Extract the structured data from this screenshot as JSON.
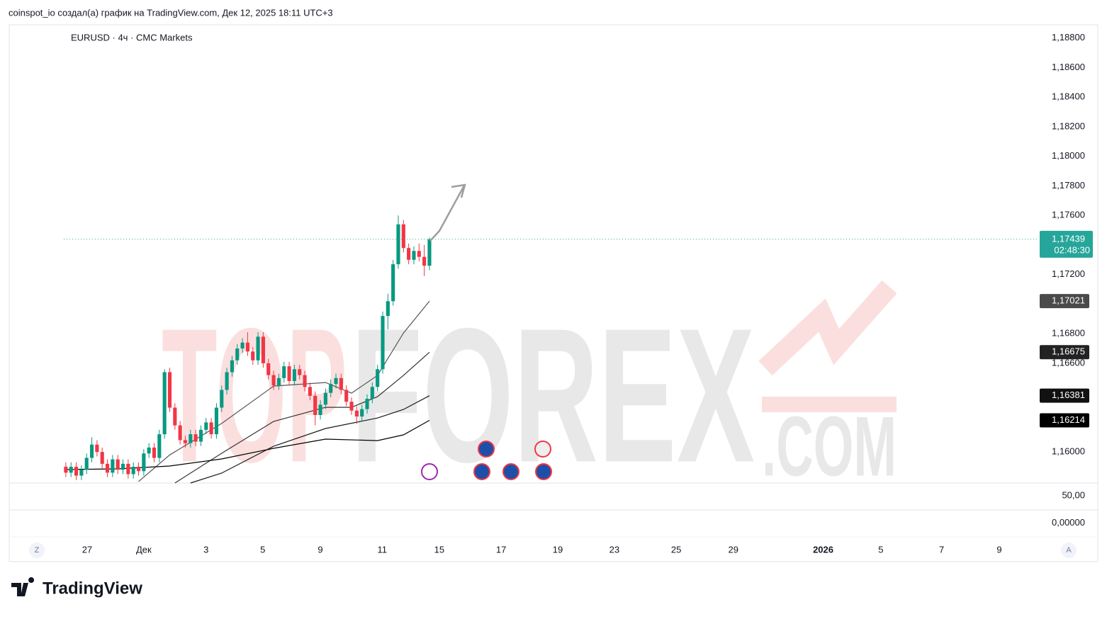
{
  "header": {
    "author_line": "coinspot_io создал(а) график на TradingView.com, Дек 12, 2025 18:11 UTC+3",
    "brand": "TradingView"
  },
  "ui": {
    "left_button": "Z",
    "right_button": "A"
  },
  "watermark": {
    "part1": "TOP",
    "part2": "FOREX",
    "domain": ".COM"
  },
  "chart_data": {
    "type": "candlestick",
    "title": "EURUSD · 4ч · CMC Markets",
    "up_color": "#089981",
    "down_color": "#f23645",
    "xlim": [
      -10.9,
      187.2
    ],
    "xticks": [
      {
        "value": 4.1,
        "label": "27"
      },
      {
        "value": 15,
        "label": "Дек"
      },
      {
        "value": 27,
        "label": "3"
      },
      {
        "value": 37.9,
        "label": "5"
      },
      {
        "value": 49,
        "label": "9"
      },
      {
        "value": 60.9,
        "label": "11"
      },
      {
        "value": 71.9,
        "label": "15"
      },
      {
        "value": 83.8,
        "label": "17"
      },
      {
        "value": 94.7,
        "label": "19"
      },
      {
        "value": 105.6,
        "label": "23"
      },
      {
        "value": 117.5,
        "label": "25"
      },
      {
        "value": 128.5,
        "label": "29"
      },
      {
        "value": 145.8,
        "label": "2026",
        "bold": true
      },
      {
        "value": 156.9,
        "label": "5"
      },
      {
        "value": 168.6,
        "label": "7"
      },
      {
        "value": 179.7,
        "label": "9"
      }
    ],
    "ylim": [
      1.1579,
      1.1889
    ],
    "yticks": [
      {
        "value": 1.188,
        "label": "1,18800"
      },
      {
        "value": 1.186,
        "label": "1,18600"
      },
      {
        "value": 1.184,
        "label": "1,18400"
      },
      {
        "value": 1.182,
        "label": "1,18200"
      },
      {
        "value": 1.18,
        "label": "1,18000"
      },
      {
        "value": 1.178,
        "label": "1,17800"
      },
      {
        "value": 1.176,
        "label": "1,17600"
      },
      {
        "value": 1.172,
        "label": "1,17200"
      },
      {
        "value": 1.168,
        "label": "1,16800"
      },
      {
        "value": 1.166,
        "label": "1,16600"
      },
      {
        "value": 1.16,
        "label": "1,16000"
      }
    ],
    "open": [
      1.159,
      1.1586,
      1.159,
      1.1584,
      1.1588,
      1.1596,
      1.1605,
      1.16,
      1.1592,
      1.1586,
      1.1595,
      1.1588,
      1.1592,
      1.1585,
      1.159,
      1.1587,
      1.1599,
      1.1603,
      1.1596,
      1.1612,
      1.1654,
      1.163,
      1.1618,
      1.1608,
      1.1606,
      1.1612,
      1.1607,
      1.1615,
      1.162,
      1.1612,
      1.163,
      1.1642,
      1.1654,
      1.1662,
      1.167,
      1.1674,
      1.1668,
      1.1662,
      1.1678,
      1.166,
      1.1652,
      1.1645,
      1.165,
      1.1658,
      1.1648,
      1.1656,
      1.1652,
      1.1644,
      1.1638,
      1.1625,
      1.1632,
      1.164,
      1.1646,
      1.165,
      1.1642,
      1.1634,
      1.1628,
      1.1624,
      1.1629,
      1.1636,
      1.1644,
      1.1656,
      1.1692,
      1.1702,
      1.1727,
      1.1754,
      1.1738,
      1.173,
      1.1736,
      1.1732,
      1.1726
    ],
    "high": [
      1.1593,
      1.1593,
      1.1593,
      1.1591,
      1.1599,
      1.161,
      1.1608,
      1.1603,
      1.1595,
      1.1598,
      1.1598,
      1.1595,
      1.1595,
      1.1593,
      1.1593,
      1.1602,
      1.1606,
      1.1606,
      1.1615,
      1.1656,
      1.1657,
      1.1633,
      1.1621,
      1.1611,
      1.1615,
      1.1615,
      1.1618,
      1.1623,
      1.1623,
      1.1633,
      1.1645,
      1.1657,
      1.1665,
      1.1673,
      1.1677,
      1.1681,
      1.1671,
      1.1681,
      1.1681,
      1.1663,
      1.1655,
      1.1653,
      1.1661,
      1.1661,
      1.1659,
      1.1659,
      1.1655,
      1.1647,
      1.1641,
      1.1635,
      1.1643,
      1.1649,
      1.1653,
      1.1653,
      1.1645,
      1.1637,
      1.1631,
      1.1632,
      1.1639,
      1.1647,
      1.1659,
      1.1695,
      1.1707,
      1.173,
      1.176,
      1.1757,
      1.1741,
      1.1739,
      1.1741,
      1.174,
      1.1745
    ],
    "low": [
      1.1583,
      1.1583,
      1.1581,
      1.1581,
      1.1585,
      1.1593,
      1.1597,
      1.1589,
      1.1583,
      1.1583,
      1.1585,
      1.1585,
      1.1582,
      1.1582,
      1.1584,
      1.1584,
      1.1596,
      1.1593,
      1.1593,
      1.1609,
      1.1627,
      1.1615,
      1.1605,
      1.1603,
      1.1603,
      1.1604,
      1.1604,
      1.1612,
      1.1609,
      1.1609,
      1.1627,
      1.1639,
      1.1651,
      1.1659,
      1.1667,
      1.1665,
      1.1659,
      1.1659,
      1.1657,
      1.1649,
      1.1642,
      1.1642,
      1.1647,
      1.1645,
      1.1645,
      1.1649,
      1.1641,
      1.1635,
      1.1618,
      1.1622,
      1.1629,
      1.1637,
      1.1643,
      1.1639,
      1.1631,
      1.1625,
      1.1619,
      1.1621,
      1.1626,
      1.1633,
      1.1641,
      1.1653,
      1.1683,
      1.1699,
      1.1724,
      1.1735,
      1.1727,
      1.1727,
      1.1729,
      1.1719,
      1.1723
    ],
    "close": [
      1.1586,
      1.159,
      1.1584,
      1.1588,
      1.1596,
      1.1605,
      1.16,
      1.1592,
      1.1586,
      1.1595,
      1.1588,
      1.1592,
      1.1585,
      1.159,
      1.1587,
      1.1599,
      1.1603,
      1.1596,
      1.1612,
      1.1654,
      1.163,
      1.1618,
      1.1608,
      1.1606,
      1.1612,
      1.1607,
      1.1615,
      1.162,
      1.1612,
      1.163,
      1.1642,
      1.1654,
      1.1662,
      1.167,
      1.1674,
      1.1668,
      1.1662,
      1.1678,
      1.166,
      1.1652,
      1.1645,
      1.165,
      1.1658,
      1.1648,
      1.1656,
      1.1652,
      1.1644,
      1.1638,
      1.1625,
      1.1632,
      1.164,
      1.1646,
      1.165,
      1.1642,
      1.1634,
      1.1628,
      1.1624,
      1.1629,
      1.1636,
      1.1644,
      1.1656,
      1.1692,
      1.1702,
      1.1727,
      1.1754,
      1.1738,
      1.173,
      1.1736,
      1.1732,
      1.1726,
      1.17439
    ],
    "last_label": "1,17439",
    "countdown": "02:48:30",
    "last_color": "#26a69a",
    "series": [
      {
        "x": [
          14,
          20,
          30,
          40,
          50,
          55,
          60,
          65,
          70
        ],
        "values": [
          1.158,
          1.1598,
          1.16193,
          1.16446,
          1.1647,
          1.16398,
          1.16518,
          1.16805,
          1.17021
        ],
        "color": "#555555",
        "value_label": "1,17021",
        "label_color": "#4a4a4a"
      },
      {
        "x": [
          21,
          30,
          40,
          50,
          55,
          60,
          65,
          70
        ],
        "values": [
          1.1579,
          1.15991,
          1.16207,
          1.16302,
          1.16302,
          1.16374,
          1.16518,
          1.16675
        ],
        "color": "#333333",
        "value_label": "1,16675",
        "label_color": "#222222"
      },
      {
        "x": [
          24,
          30,
          40,
          50,
          60,
          65,
          70
        ],
        "values": [
          1.1579,
          1.15857,
          1.16039,
          1.16159,
          1.1623,
          1.16288,
          1.16381
        ],
        "color": "#1a1a1a",
        "value_label": "1,16381",
        "label_color": "#111111"
      },
      {
        "x": [
          0,
          10,
          20,
          30,
          40,
          50,
          60,
          65,
          70
        ],
        "values": [
          1.15881,
          1.15886,
          1.15905,
          1.15953,
          1.16025,
          1.16087,
          1.16077,
          1.16116,
          1.16214
        ],
        "color": "#000000",
        "value_label": "1,16214",
        "label_color": "#000000"
      }
    ],
    "lower_pane": {
      "ylim": [
        -25,
        72
      ],
      "yticks": [
        {
          "value": 50,
          "label": "50,00"
        },
        {
          "value": 0,
          "label": "0,00000"
        }
      ]
    }
  }
}
